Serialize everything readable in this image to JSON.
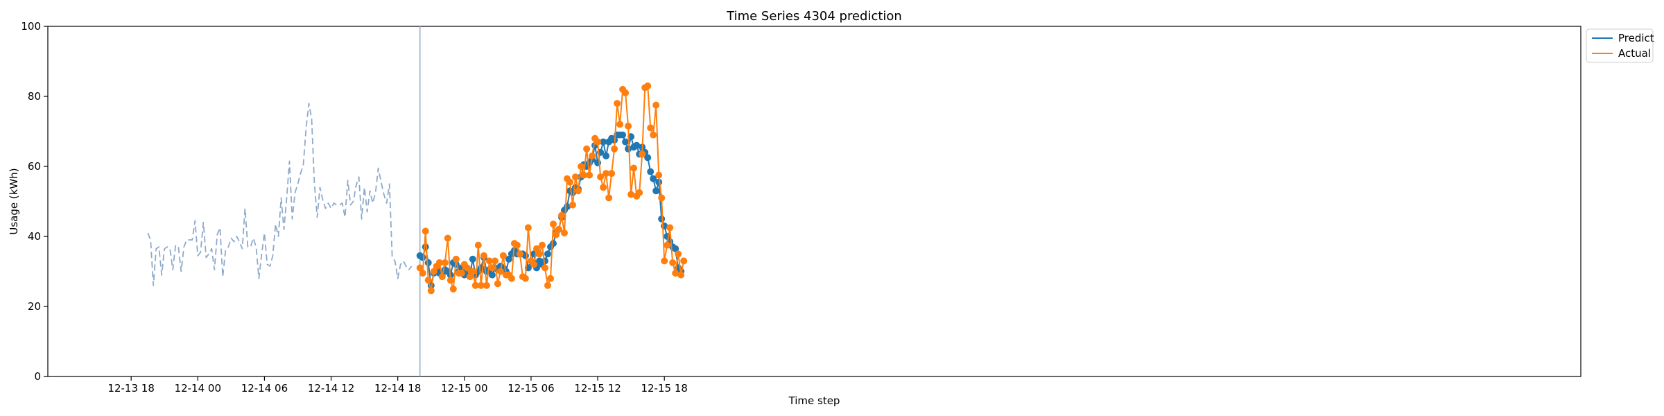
{
  "chart_data": {
    "type": "line",
    "title": "Time Series 4304 prediction",
    "xlabel": "Time step",
    "ylabel": "Usage (kWh)",
    "ylim": [
      0,
      100
    ],
    "yticks": [
      0,
      20,
      40,
      60,
      80,
      100
    ],
    "xlim": [
      -7.5,
      130.5
    ],
    "x_unit": "hours since 12-13 18:00 (axis shows dates)",
    "xticks": [
      {
        "x": 0,
        "label": "12-13 18"
      },
      {
        "x": 6,
        "label": "12-14 00"
      },
      {
        "x": 12,
        "label": "12-14 06"
      },
      {
        "x": 18,
        "label": "12-14 12"
      },
      {
        "x": 24,
        "label": "12-14 18"
      },
      {
        "x": 30,
        "label": "12-15 00"
      },
      {
        "x": 36,
        "label": "12-15 06"
      },
      {
        "x": 42,
        "label": "12-15 12"
      },
      {
        "x": 48,
        "label": "12-15 18"
      }
    ],
    "forecast_start_x": 26,
    "grid": false,
    "legend_position": "upper-right",
    "legend": [
      "Predict",
      "Actual"
    ],
    "series": [
      {
        "name": "history",
        "style": "dashed",
        "color": "#8fa9cc",
        "x_start": 1.5,
        "x_step": 0.25,
        "values": [
          41,
          39,
          26,
          36.5,
          37,
          29,
          36.5,
          37,
          36.5,
          30.5,
          37.5,
          37,
          30,
          37,
          39,
          39,
          39,
          44.5,
          34.5,
          35.5,
          44,
          34,
          35,
          36.5,
          30.5,
          40.5,
          42.5,
          28.5,
          36,
          37,
          39.5,
          38.5,
          40,
          38.5,
          36.5,
          48,
          37,
          37,
          39.5,
          37,
          28,
          35,
          41,
          32,
          31.5,
          34.5,
          43.5,
          40,
          51,
          42,
          51,
          61.5,
          45,
          52.5,
          55,
          58,
          60.5,
          71,
          78,
          73.5,
          55,
          45.5,
          54,
          50.5,
          48,
          49.5,
          48,
          49.5,
          49,
          49,
          49.5,
          45.5,
          56,
          49,
          50,
          54.5,
          57,
          45,
          54,
          47,
          53,
          49.5,
          52.5,
          59.5,
          55.5,
          52,
          49.5,
          55,
          34,
          33,
          28,
          32,
          33,
          31.5,
          30.5,
          31.5
        ]
      },
      {
        "name": "Predict",
        "style": "solid-markers",
        "color": "#1f77b4",
        "x_start": 26,
        "x_step": 0.25,
        "values": [
          34.5,
          34,
          37,
          32.5,
          26,
          29.5,
          30.5,
          29.5,
          29,
          30.5,
          30,
          29,
          32.5,
          32,
          30,
          31,
          29,
          30,
          29,
          33.5,
          29,
          30,
          31,
          34,
          30,
          30.5,
          29,
          31,
          30.5,
          31.5,
          31,
          30,
          33.5,
          35,
          36,
          35,
          35,
          35,
          34.5,
          31,
          33,
          35,
          31,
          33,
          32,
          33,
          35,
          37,
          38,
          41,
          42,
          45.5,
          47.5,
          48.5,
          53,
          52.5,
          54,
          53.5,
          57,
          60.5,
          60,
          61,
          62,
          66,
          61,
          64,
          67,
          63,
          67,
          68,
          67.5,
          69,
          69,
          69,
          67,
          65,
          68.5,
          65.5,
          66,
          63.5,
          65.5,
          64,
          62.5,
          58.5,
          56.5,
          53,
          55.5,
          45,
          43,
          40,
          38.5,
          37,
          36.5,
          31,
          30
        ]
      },
      {
        "name": "Actual",
        "style": "solid-markers",
        "color": "#ff7f0e",
        "x_start": 26,
        "x_step": 0.25,
        "values": [
          31,
          29.5,
          41.5,
          27.5,
          24.5,
          30,
          31.5,
          32.5,
          28.5,
          32.5,
          39.5,
          27.5,
          25,
          33.5,
          29.5,
          29.5,
          32,
          31,
          28.5,
          30,
          26,
          37.5,
          26,
          34.5,
          26,
          33,
          31,
          33,
          26.5,
          30,
          34.5,
          29,
          29,
          28,
          38,
          37.5,
          35,
          28.5,
          28,
          42.5,
          33,
          32,
          36.5,
          35,
          37.5,
          31,
          26,
          28,
          43.5,
          40.5,
          42,
          46,
          41,
          56.5,
          55.5,
          49,
          57,
          53,
          60,
          57.5,
          65,
          57.5,
          63,
          68,
          67,
          57,
          54,
          58,
          51,
          58,
          65,
          78,
          72,
          82,
          81,
          71.5,
          52,
          59.5,
          51.5,
          52.5,
          63.5,
          82.5,
          83,
          71,
          69,
          77.5,
          57.5,
          51,
          33,
          37.5,
          42.5,
          32.5,
          29.5,
          35,
          29,
          33
        ]
      }
    ]
  }
}
